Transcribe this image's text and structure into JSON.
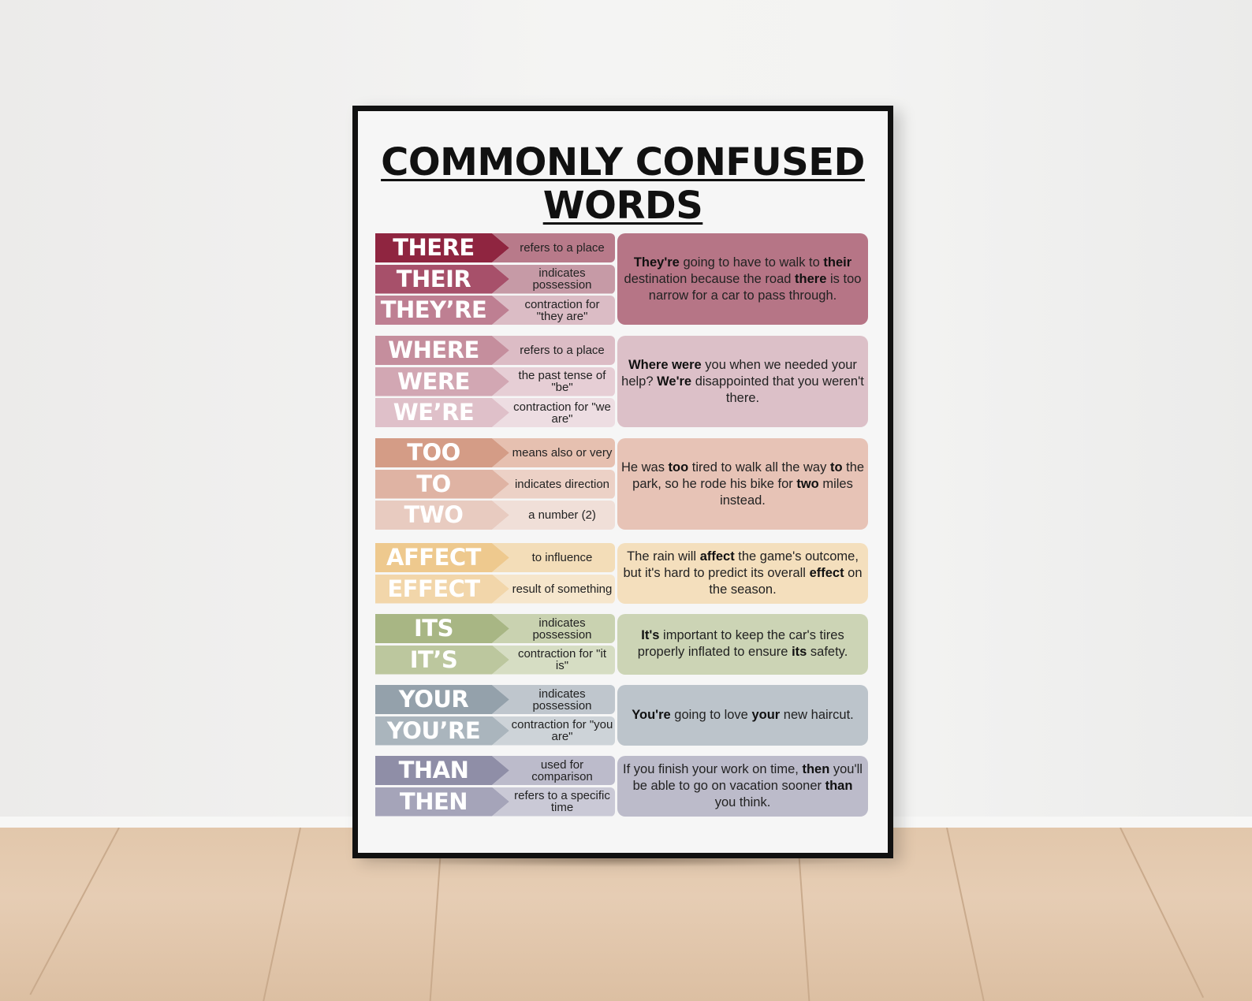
{
  "title_line1": "COMMONLY CONFUSED",
  "title_line2": "WORDS",
  "groups": [
    {
      "words": [
        {
          "word": "THERE",
          "meaning": "refers to a place",
          "word_color": "#8f2540",
          "meaning_color": "#b87a8a"
        },
        {
          "word": "THEIR",
          "meaning": "indicates possession",
          "word_color": "#a7506a",
          "meaning_color": "#c69aa6"
        },
        {
          "word": "THEY’RE",
          "meaning": "contraction for \"they are\"",
          "word_color": "#be7f92",
          "meaning_color": "#dbbcc5"
        }
      ],
      "example": [
        {
          "text": "They're",
          "bold": true
        },
        {
          "text": " going to have to walk to ",
          "bold": false
        },
        {
          "text": "their",
          "bold": true
        },
        {
          "text": " destination because the road ",
          "bold": false
        },
        {
          "text": "there",
          "bold": true
        },
        {
          "text": " is too narrow for a car to pass through.",
          "bold": false
        }
      ],
      "example_color": "#b67586"
    },
    {
      "words": [
        {
          "word": "WHERE",
          "meaning": "refers to a place",
          "word_color": "#c58e9d",
          "meaning_color": "#dcbcc5"
        },
        {
          "word": "WERE",
          "meaning": "the past tense of \"be\"",
          "word_color": "#d2a7b3",
          "meaning_color": "#e6ced5"
        },
        {
          "word": "WE’RE",
          "meaning": "contraction for \"we are\"",
          "word_color": "#dfc0c9",
          "meaning_color": "#eddde2"
        }
      ],
      "example": [
        {
          "text": "Where were",
          "bold": true
        },
        {
          "text": " you when we needed your help? ",
          "bold": false
        },
        {
          "text": "We're",
          "bold": true
        },
        {
          "text": " disappointed that you weren't there.",
          "bold": false
        }
      ],
      "example_color": "#dcc0c8"
    },
    {
      "words": [
        {
          "word": "TOO",
          "meaning": "means also or very",
          "word_color": "#d49c86",
          "meaning_color": "#e6c0b0"
        },
        {
          "word": "TO",
          "meaning": "indicates direction",
          "word_color": "#dfb3a3",
          "meaning_color": "#ecd1c6"
        },
        {
          "word": "TWO",
          "meaning": "a number (2)",
          "word_color": "#e8cbc0",
          "meaning_color": "#f0dfd8"
        }
      ],
      "example": [
        {
          "text": "He was ",
          "bold": false
        },
        {
          "text": "too",
          "bold": true
        },
        {
          "text": " tired to walk all the way ",
          "bold": false
        },
        {
          "text": "to",
          "bold": true
        },
        {
          "text": " the park, so he rode his bike for ",
          "bold": false
        },
        {
          "text": "two",
          "bold": true
        },
        {
          "text": " miles instead.",
          "bold": false
        }
      ],
      "example_color": "#e7c3b6"
    },
    {
      "words": [
        {
          "word": "AFFECT",
          "meaning": "to influence",
          "word_color": "#eec98e",
          "meaning_color": "#f3ddb8"
        },
        {
          "word": "EFFECT",
          "meaning": "result of something",
          "word_color": "#f2d6aa",
          "meaning_color": "#f6e6cc"
        }
      ],
      "example": [
        {
          "text": "The rain will ",
          "bold": false
        },
        {
          "text": "affect",
          "bold": true
        },
        {
          "text": " the game's outcome, but it's hard to predict its overall ",
          "bold": false
        },
        {
          "text": "effect",
          "bold": true
        },
        {
          "text": " on the season.",
          "bold": false
        }
      ],
      "example_color": "#f4dfbd"
    },
    {
      "words": [
        {
          "word": "ITS",
          "meaning": "indicates possession",
          "word_color": "#a8b684",
          "meaning_color": "#c9d2b0"
        },
        {
          "word": "IT’S",
          "meaning": "contraction for \"it is\"",
          "word_color": "#bcc79e",
          "meaning_color": "#d6ddc3"
        }
      ],
      "example": [
        {
          "text": "It's",
          "bold": true
        },
        {
          "text": " important to keep the car's tires properly inflated to ensure ",
          "bold": false
        },
        {
          "text": "its",
          "bold": true
        },
        {
          "text": " safety.",
          "bold": false
        }
      ],
      "example_color": "#ccd4b5"
    },
    {
      "words": [
        {
          "word": "YOUR",
          "meaning": "indicates possession",
          "word_color": "#94a1ab",
          "meaning_color": "#bfc6cd"
        },
        {
          "word": "YOU’RE",
          "meaning": "contraction for \"you are\"",
          "word_color": "#aab5bd",
          "meaning_color": "#cdd3d8"
        }
      ],
      "example": [
        {
          "text": "You're",
          "bold": true
        },
        {
          "text": " going to love ",
          "bold": false
        },
        {
          "text": "your",
          "bold": true
        },
        {
          "text": " new haircut.",
          "bold": false
        }
      ],
      "example_color": "#bcc4cb"
    },
    {
      "words": [
        {
          "word": "THAN",
          "meaning": "used for comparison",
          "word_color": "#8f8ea7",
          "meaning_color": "#bcbbcb"
        },
        {
          "word": "THEN",
          "meaning": "refers to a specific time",
          "word_color": "#a5a4b9",
          "meaning_color": "#cac9d6"
        }
      ],
      "example": [
        {
          "text": "If you finish your work on time, ",
          "bold": false
        },
        {
          "text": "then",
          "bold": true
        },
        {
          "text": " you'll be able to go on vacation sooner ",
          "bold": false
        },
        {
          "text": "than",
          "bold": true
        },
        {
          "text": " you think.",
          "bold": false
        }
      ],
      "example_color": "#bcbbca"
    }
  ]
}
